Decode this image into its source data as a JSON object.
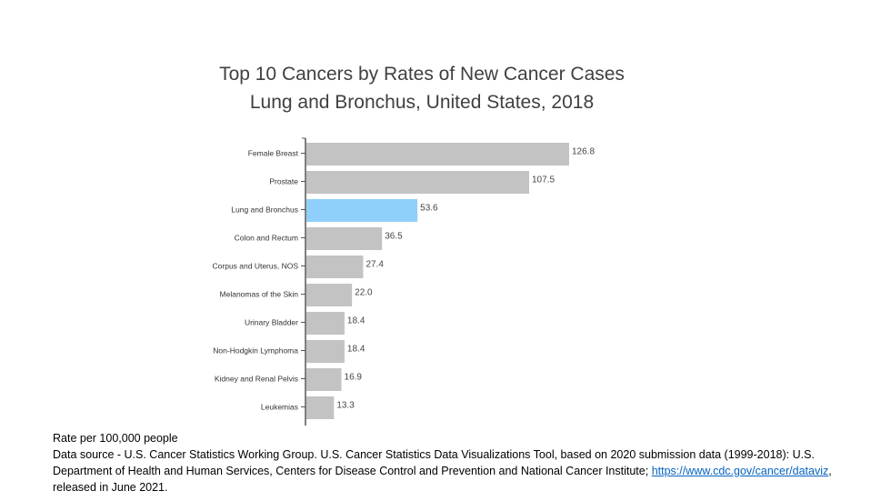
{
  "chart_data": {
    "type": "bar",
    "orientation": "horizontal",
    "title": "Top 10 Cancers by Rates of New Cancer Cases",
    "subtitle": "Lung and Bronchus, United States, 2018",
    "categories": [
      "Female Breast",
      "Prostate",
      "Lung and Bronchus",
      "Colon and Rectum",
      "Corpus and Uterus, NOS",
      "Melanomas of the Skin",
      "Urinary Bladder",
      "Non-Hodgkin Lymphoma",
      "Kidney and Renal Pelvis",
      "Leukemias"
    ],
    "values": [
      126.8,
      107.5,
      53.6,
      36.5,
      27.4,
      22.0,
      18.4,
      18.4,
      16.9,
      13.3
    ],
    "value_labels": [
      "126.8",
      "107.5",
      "53.6",
      "36.5",
      "27.4",
      "22.0",
      "18.4",
      "18.4",
      "16.9",
      "13.3"
    ],
    "highlight": "Lung and Bronchus",
    "colors": {
      "default": "#c3c3c3",
      "highlight": "#8fd0fb",
      "axis": "#555555"
    },
    "xlim": [
      0,
      130
    ],
    "grid": false,
    "legend": "none"
  },
  "notes": {
    "rate": "Rate per 100,000 people",
    "source": "Data source - U.S. Cancer Statistics Working Group. U.S. Cancer Statistics Data Visualizations Tool, based on 2020 submission data (1999-2018): U.S. Department of Health and Human Services, Centers for Disease Control and Prevention and National Cancer Institute; ",
    "link": "https://www.cdc.gov/cancer/dataviz",
    "release": ", released in June 2021."
  }
}
